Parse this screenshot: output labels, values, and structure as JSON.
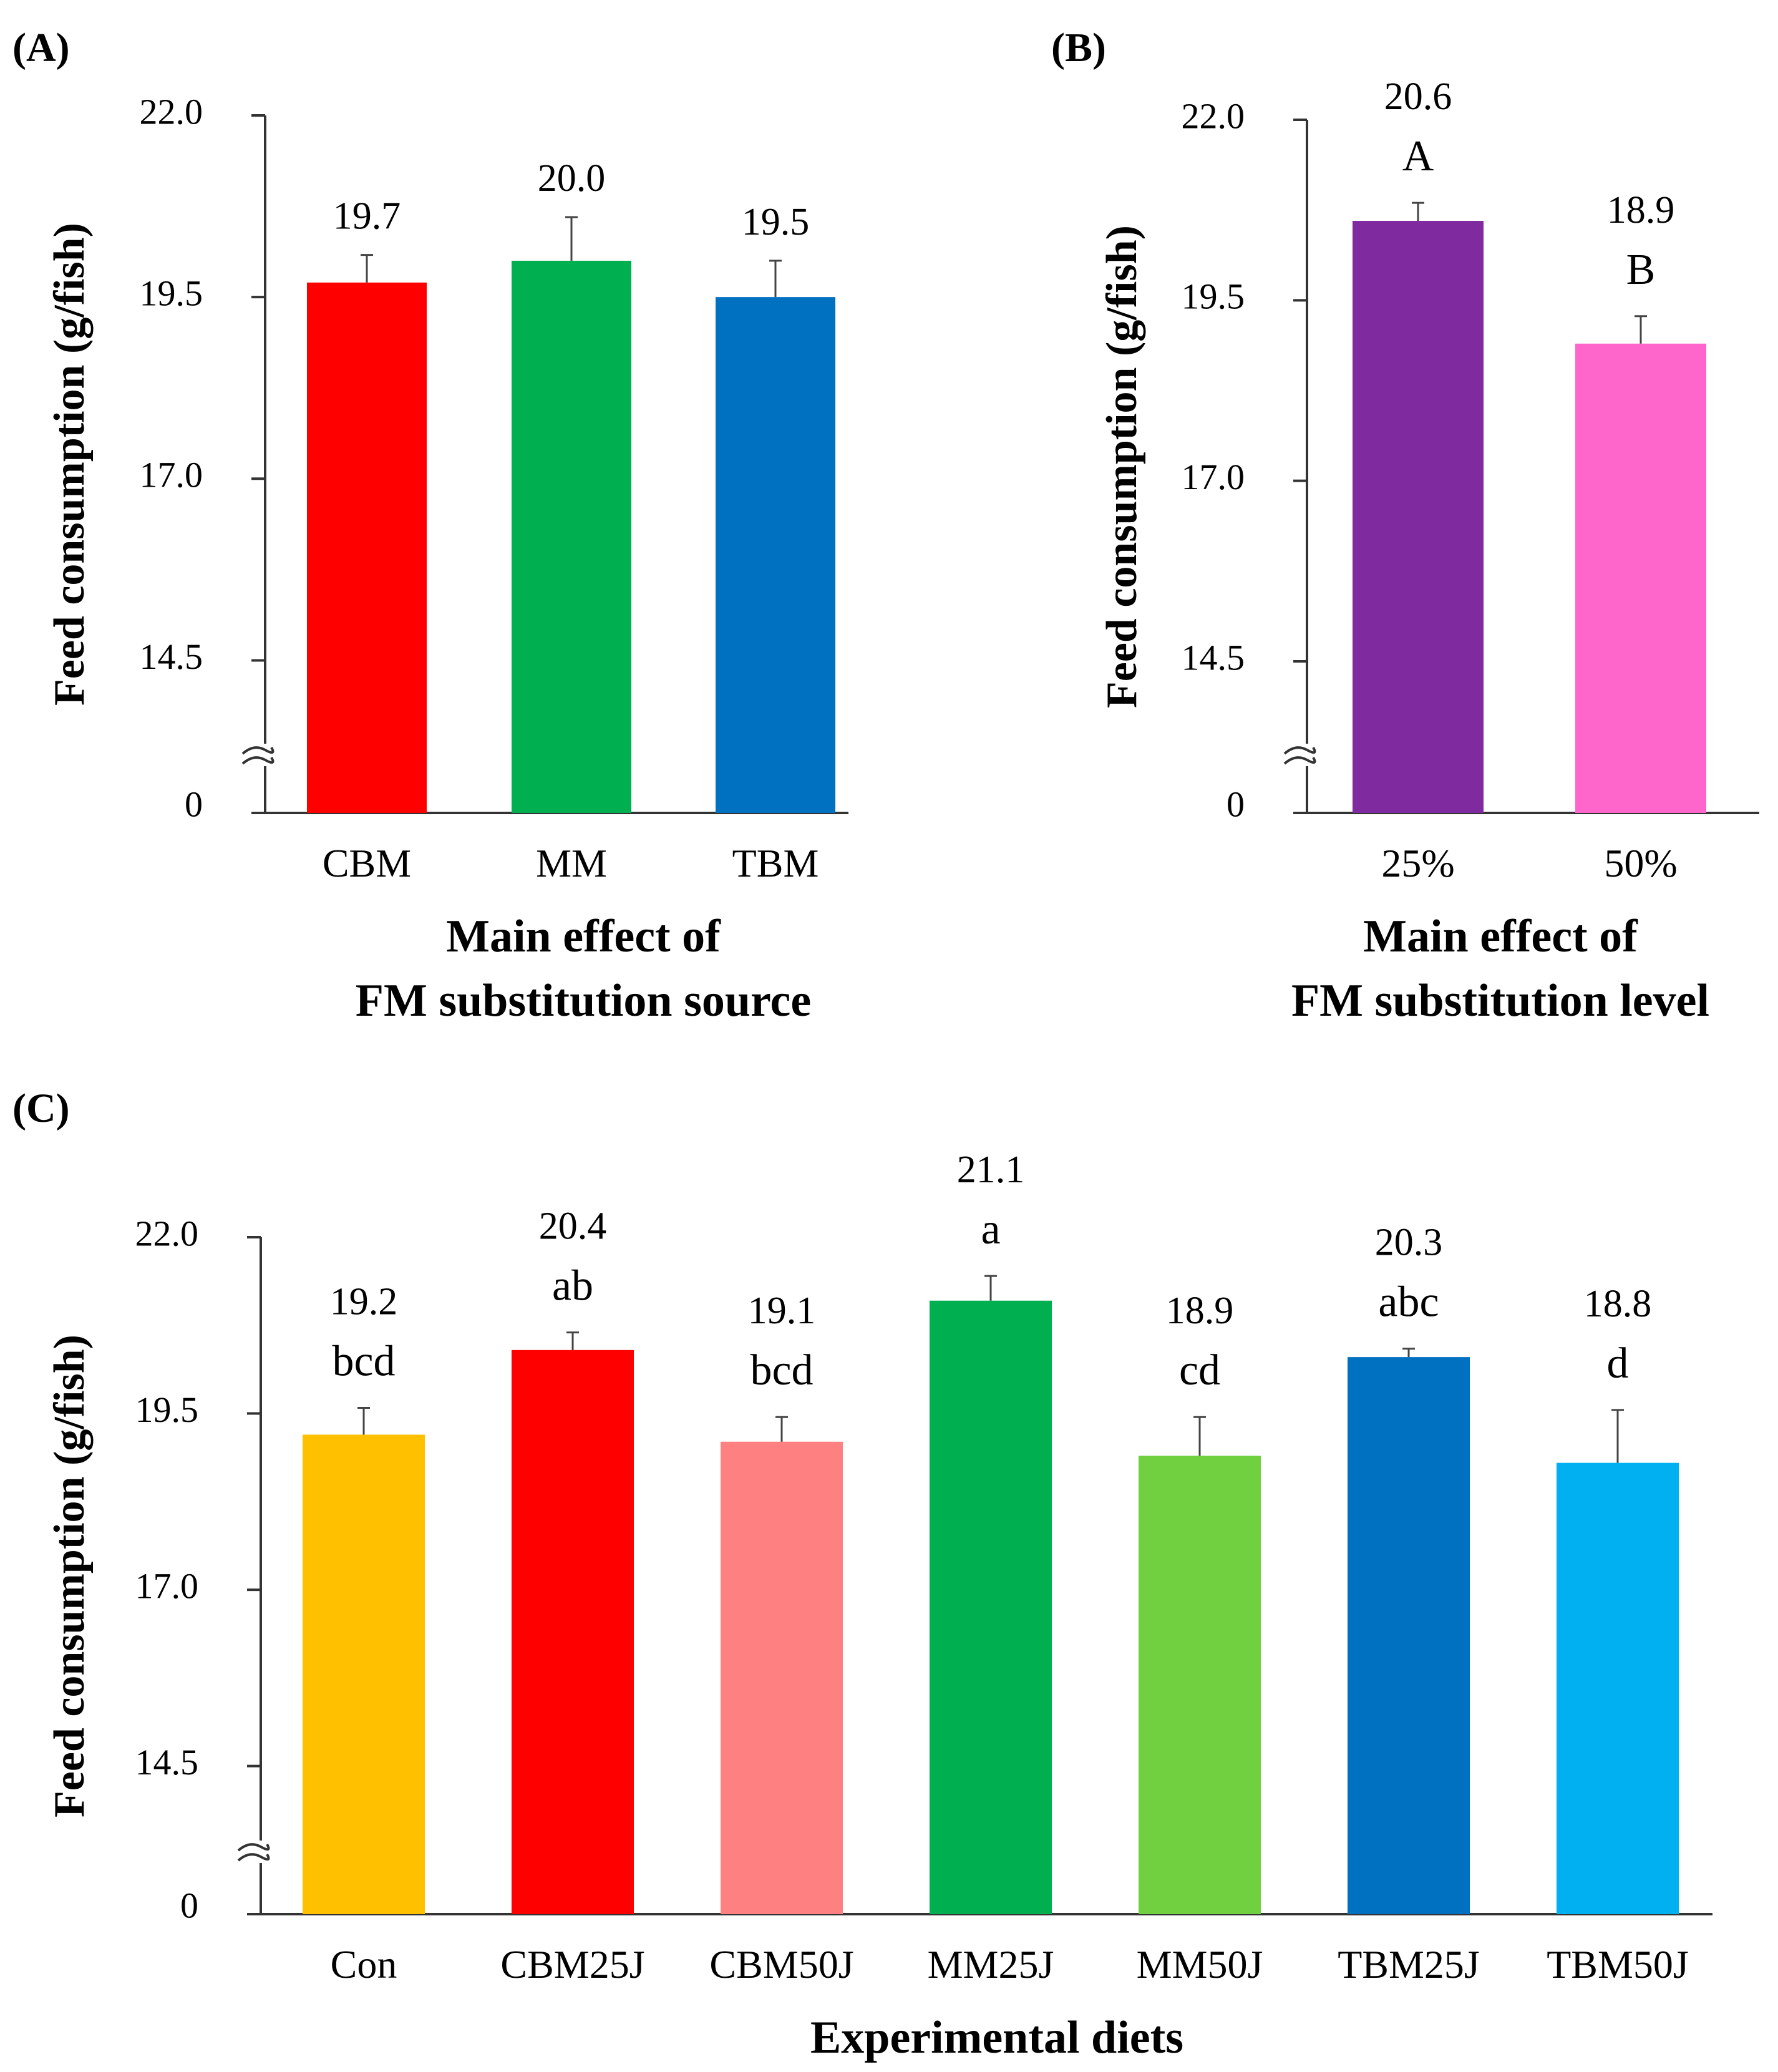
{
  "chart_data": [
    {
      "panel": "(A)",
      "type": "bar",
      "ylabel": "Feed consumption (g/fish)",
      "xlabel_lines": [
        "Main effect of",
        "FM substitution source"
      ],
      "yticks": [
        "0",
        "14.5",
        "17.0",
        "19.5",
        "22.0"
      ],
      "ylim": [
        12.4,
        22.0
      ],
      "axis_break": true,
      "categories": [
        "CBM",
        "MM",
        "TBM"
      ],
      "values": [
        19.7,
        20.0,
        19.5
      ],
      "value_labels": [
        "19.7",
        "20.0",
        "19.5"
      ],
      "errors": [
        0.38,
        0.6,
        0.5
      ],
      "significance": [
        "",
        "",
        ""
      ],
      "colors": [
        "#FF0000",
        "#00B050",
        "#0070C0"
      ]
    },
    {
      "panel": "(B)",
      "type": "bar",
      "ylabel": "Feed consumption (g/fish)",
      "xlabel_lines": [
        "Main effect of",
        "FM substitution level"
      ],
      "yticks": [
        "0",
        "14.5",
        "17.0",
        "19.5",
        "22.0"
      ],
      "ylim": [
        12.4,
        22.0
      ],
      "axis_break": true,
      "categories": [
        "25%",
        "50%"
      ],
      "values": [
        20.6,
        18.9
      ],
      "value_labels": [
        "20.6",
        "18.9"
      ],
      "errors": [
        0.25,
        0.38
      ],
      "significance": [
        "A",
        "B"
      ],
      "colors": [
        "#7F2A9E",
        "#FF66CC"
      ]
    },
    {
      "panel": "(C)",
      "type": "bar",
      "ylabel": "Feed consumption (g/fish)",
      "xlabel_lines": [
        "Experimental diets"
      ],
      "yticks": [
        "0",
        "14.5",
        "17.0",
        "19.5",
        "22.0"
      ],
      "ylim": [
        12.4,
        22.0
      ],
      "axis_break": true,
      "categories": [
        "Con",
        "CBM25J",
        "CBM50J",
        "MM25J",
        "MM50J",
        "TBM25J",
        "TBM50J"
      ],
      "values": [
        19.2,
        20.4,
        19.1,
        21.1,
        18.9,
        20.3,
        18.8
      ],
      "value_labels": [
        "19.2",
        "20.4",
        "19.1",
        "21.1",
        "18.9",
        "20.3",
        "18.8"
      ],
      "errors": [
        0.38,
        0.25,
        0.35,
        0.35,
        0.55,
        0.12,
        0.75
      ],
      "significance": [
        "bcd",
        "ab",
        "bcd",
        "a",
        "cd",
        "abc",
        "d"
      ],
      "colors": [
        "#FFC000",
        "#FF0000",
        "#FF8080",
        "#00B050",
        "#70D040",
        "#0070C0",
        "#00B0F0"
      ]
    }
  ]
}
